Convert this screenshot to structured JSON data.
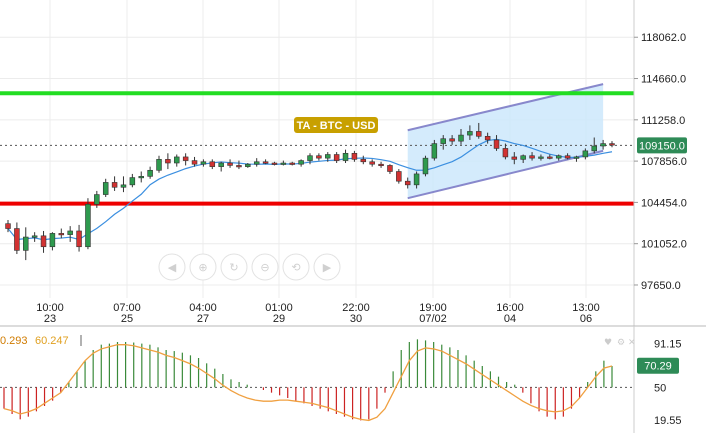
{
  "chart_data": {
    "type": "candlestick",
    "title": "TA - BTC - USD",
    "price_axis": {
      "ticks": [
        "118062.0",
        "114660.0",
        "111258.0",
        "107856.0",
        "104454.0",
        "101052.0",
        "97650.0"
      ],
      "tick_values": [
        118062,
        114660,
        111258,
        107856,
        104454,
        101052,
        97650
      ],
      "ylim": [
        94600,
        120800
      ]
    },
    "current_price": "109150.0",
    "current_price_value": 109150,
    "time_axis": [
      {
        "time": "10:00",
        "date": "23"
      },
      {
        "time": "07:00",
        "date": "25"
      },
      {
        "time": "04:00",
        "date": "27"
      },
      {
        "time": "01:00",
        "date": "29"
      },
      {
        "time": "22:00",
        "date": "30"
      },
      {
        "time": "19:00",
        "date": "07/02"
      },
      {
        "time": "16:00",
        "date": "04"
      },
      {
        "time": "13:00",
        "date": "06"
      }
    ],
    "horizontal_levels": [
      {
        "name": "resistance",
        "value": 113450,
        "color": "#22dd22"
      },
      {
        "name": "support",
        "value": 104350,
        "color": "#ee0000"
      }
    ],
    "channel": {
      "start_index": 45,
      "end_index": 67,
      "upper": [
        110400,
        114200
      ],
      "lower": [
        104800,
        108700
      ],
      "fill": "#cce8fb",
      "line_color": "#8888cc"
    },
    "moving_average_color": "#3b8fe0",
    "candles": [
      [
        102700,
        103000,
        102000,
        102300
      ],
      [
        102300,
        102800,
        100200,
        100500
      ],
      [
        100500,
        102400,
        99700,
        101600
      ],
      [
        101600,
        102000,
        101200,
        101700
      ],
      [
        101700,
        102100,
        100300,
        100800
      ],
      [
        100800,
        102000,
        100500,
        101900
      ],
      [
        101900,
        102300,
        101500,
        101800
      ],
      [
        101800,
        102500,
        101200,
        102100
      ],
      [
        102100,
        102600,
        100400,
        100800
      ],
      [
        100800,
        104800,
        100600,
        104300
      ],
      [
        104300,
        105400,
        104000,
        105100
      ],
      [
        105100,
        106400,
        104900,
        106100
      ],
      [
        106100,
        106600,
        105400,
        105700
      ],
      [
        105700,
        106600,
        105300,
        105900
      ],
      [
        105900,
        106800,
        105700,
        106500
      ],
      [
        106500,
        107000,
        106100,
        106600
      ],
      [
        106600,
        107400,
        106400,
        107100
      ],
      [
        107100,
        108300,
        106900,
        108000
      ],
      [
        108000,
        108500,
        107200,
        107700
      ],
      [
        107700,
        108400,
        107400,
        108200
      ],
      [
        108200,
        108500,
        107500,
        107900
      ],
      [
        107900,
        108200,
        107400,
        107600
      ],
      [
        107600,
        108000,
        107400,
        107800
      ],
      [
        107800,
        108000,
        107200,
        107400
      ],
      [
        107400,
        107800,
        107000,
        107700
      ],
      [
        107700,
        108000,
        107300,
        107500
      ],
      [
        107500,
        107900,
        107200,
        107400
      ],
      [
        107400,
        107700,
        107300,
        107600
      ],
      [
        107600,
        108100,
        107400,
        107800
      ],
      [
        107800,
        108000,
        107600,
        107700
      ],
      [
        107700,
        107800,
        107500,
        107600
      ],
      [
        107600,
        107900,
        107500,
        107700
      ],
      [
        107700,
        107800,
        107500,
        107600
      ],
      [
        107600,
        108000,
        107400,
        107900
      ],
      [
        107900,
        108500,
        107600,
        108300
      ],
      [
        108300,
        108500,
        107900,
        108100
      ],
      [
        108100,
        108600,
        107800,
        108400
      ],
      [
        108400,
        108600,
        107700,
        107900
      ],
      [
        107900,
        108800,
        107700,
        108500
      ],
      [
        108500,
        108700,
        107800,
        108000
      ],
      [
        108000,
        108300,
        107600,
        107800
      ],
      [
        107800,
        108000,
        107400,
        107600
      ],
      [
        107600,
        107800,
        107300,
        107500
      ],
      [
        107500,
        107600,
        106800,
        107000
      ],
      [
        107000,
        107200,
        106000,
        106200
      ],
      [
        106200,
        106500,
        105600,
        105900
      ],
      [
        105900,
        107000,
        105600,
        106800
      ],
      [
        106800,
        108300,
        106600,
        108100
      ],
      [
        108100,
        109600,
        107900,
        109300
      ],
      [
        109300,
        110000,
        108800,
        109700
      ],
      [
        109700,
        110000,
        109200,
        109500
      ],
      [
        109500,
        110500,
        109200,
        110000
      ],
      [
        110000,
        110800,
        109600,
        110300
      ],
      [
        110300,
        111000,
        109700,
        109900
      ],
      [
        109900,
        110200,
        109300,
        109600
      ],
      [
        109600,
        110000,
        108700,
        108900
      ],
      [
        108900,
        109300,
        108000,
        108200
      ],
      [
        108200,
        108600,
        107600,
        108000
      ],
      [
        108000,
        108400,
        107700,
        108300
      ],
      [
        108300,
        108600,
        107900,
        108100
      ],
      [
        108100,
        108400,
        107900,
        108200
      ],
      [
        108200,
        108400,
        108000,
        108100
      ],
      [
        108100,
        108400,
        107900,
        108300
      ],
      [
        108300,
        108500,
        108000,
        108100
      ],
      [
        108100,
        108300,
        107800,
        108200
      ],
      [
        108200,
        108900,
        108000,
        108700
      ],
      [
        108700,
        109800,
        108500,
        109100
      ],
      [
        109100,
        109600,
        108800,
        109300
      ],
      [
        109300,
        109500,
        109000,
        109200
      ]
    ],
    "indicator": {
      "left_values": [
        "0.293",
        "60.247"
      ],
      "left_value_colors": [
        "#d07b00",
        "#e0a020"
      ],
      "axis_ticks": [
        "91.15",
        "50",
        "19.55"
      ],
      "axis_tick_values": [
        91.15,
        50,
        19.55
      ],
      "current": "70.29",
      "current_value": 70.29,
      "ylim": [
        10,
        100
      ],
      "midline": 50,
      "positive_color": "#3a8a3a",
      "negative_color": "#cc2222",
      "line_color": "#f0a040",
      "bars": [
        -40,
        -50,
        -60,
        -55,
        -45,
        -35,
        -25,
        -10,
        10,
        30,
        50,
        70,
        80,
        82,
        85,
        85,
        84,
        82,
        80,
        75,
        70,
        68,
        65,
        60,
        55,
        45,
        35,
        25,
        15,
        10,
        5,
        0,
        -5,
        -10,
        -15,
        -20,
        -25,
        -30,
        -35,
        -40,
        -45,
        -50,
        -55,
        -60,
        -62,
        -60,
        -40,
        -10,
        30,
        70,
        85,
        90,
        88,
        85,
        80,
        75,
        70,
        60,
        50,
        40,
        30,
        20,
        10,
        5,
        -10,
        -30,
        -45,
        -55,
        -60,
        -55,
        -40,
        -20,
        10,
        30,
        50,
        40
      ],
      "line": [
        30,
        28,
        25,
        27,
        30,
        35,
        40,
        45,
        55,
        65,
        75,
        82,
        86,
        88,
        90,
        90,
        89,
        87,
        85,
        83,
        80,
        78,
        75,
        72,
        68,
        63,
        58,
        52,
        47,
        43,
        40,
        38,
        37,
        37,
        38,
        38,
        37,
        36,
        35,
        33,
        31,
        28,
        25,
        22,
        20,
        19,
        22,
        30,
        45,
        60,
        75,
        84,
        87,
        86,
        84,
        80,
        76,
        72,
        67,
        62,
        57,
        52,
        47,
        42,
        37,
        33,
        30,
        28,
        27,
        28,
        32,
        40,
        50,
        60,
        68,
        70
      ]
    }
  },
  "toolbar_icons": [
    "prev-arrow-icon",
    "zoom-in-icon",
    "zoom-fit-icon",
    "zoom-out-icon",
    "reset-zoom-icon",
    "next-arrow-icon"
  ]
}
